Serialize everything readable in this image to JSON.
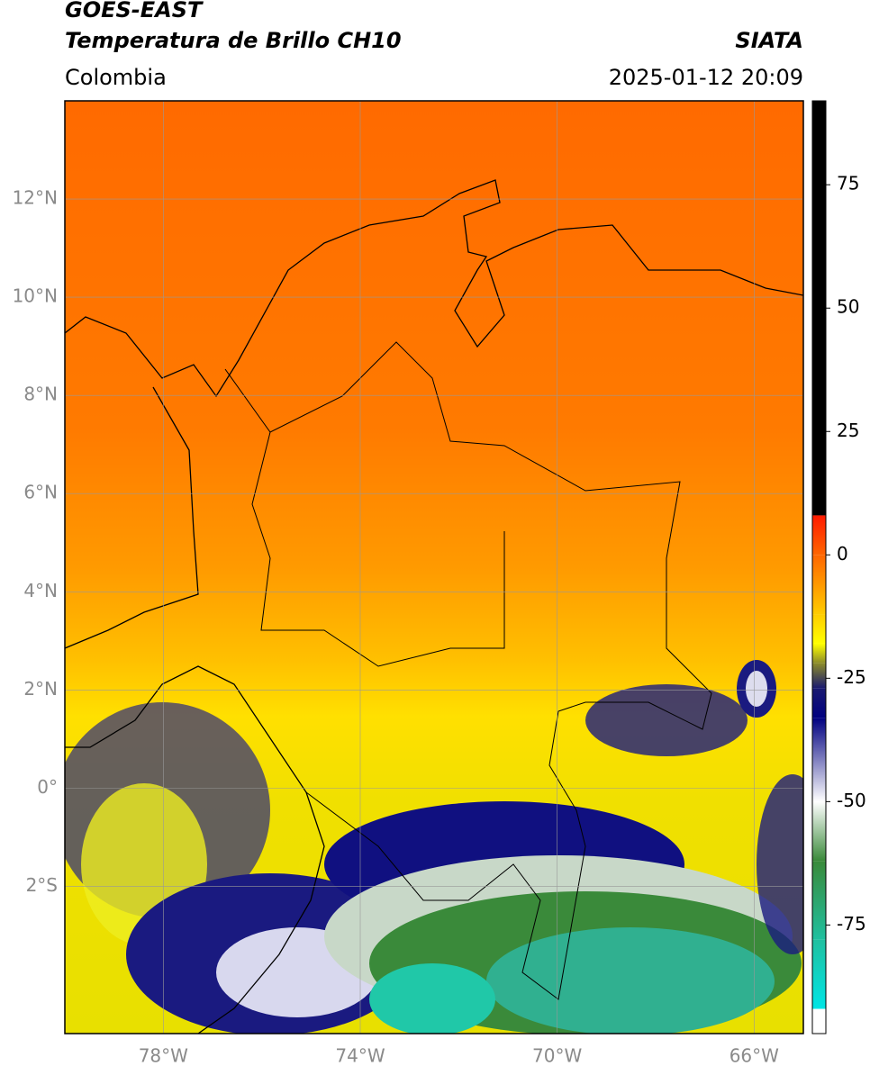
{
  "header": {
    "title": "GOES-EAST",
    "subtitle": "Temperatura de Brillo CH10",
    "source": "SIATA",
    "region": "Colombia",
    "datetime": "2025-01-12 20:09"
  },
  "map": {
    "xlim": [
      -80,
      -65
    ],
    "ylim": [
      -5,
      14
    ],
    "xticks": [
      {
        "value": -78,
        "label": "78°W"
      },
      {
        "value": -74,
        "label": "74°W"
      },
      {
        "value": -70,
        "label": "70°W"
      },
      {
        "value": -66,
        "label": "66°W"
      }
    ],
    "yticks": [
      {
        "value": 12,
        "label": "12°N"
      },
      {
        "value": 10,
        "label": "10°N"
      },
      {
        "value": 8,
        "label": "8°N"
      },
      {
        "value": 6,
        "label": "6°N"
      },
      {
        "value": 4,
        "label": "4°N"
      },
      {
        "value": 2,
        "label": "2°N"
      },
      {
        "value": 0,
        "label": "0°"
      },
      {
        "value": -2,
        "label": "2°S"
      }
    ]
  },
  "colorbar": {
    "lim": [
      -97,
      92
    ],
    "ticks": [
      75,
      50,
      25,
      0,
      -25,
      -50,
      -75
    ],
    "colormap": [
      {
        "value": 92,
        "color": "#000000"
      },
      {
        "value": 8,
        "color": "#000000"
      },
      {
        "value": 8,
        "color": "#ff1a00"
      },
      {
        "value": 0,
        "color": "#ff6600"
      },
      {
        "value": -12,
        "color": "#ffcc00"
      },
      {
        "value": -18,
        "color": "#ffff00"
      },
      {
        "value": -22,
        "color": "#8a8a2a"
      },
      {
        "value": -27,
        "color": "#1a1a70"
      },
      {
        "value": -33,
        "color": "#000080"
      },
      {
        "value": -50,
        "color": "#ffffff"
      },
      {
        "value": -62,
        "color": "#3a8a3a"
      },
      {
        "value": -78,
        "color": "#20c0a0"
      },
      {
        "value": -92,
        "color": "#00e5e5"
      },
      {
        "value": -92,
        "color": "#ffffff"
      },
      {
        "value": -97,
        "color": "#ffffff"
      }
    ]
  }
}
